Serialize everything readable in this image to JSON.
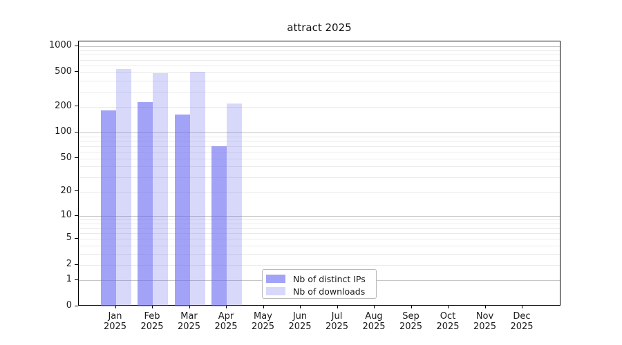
{
  "chart_data": {
    "type": "bar",
    "title": "attract 2025",
    "scale": "log1p",
    "ylabel": "",
    "xlabel": "",
    "ylim": [
      0,
      1140
    ],
    "y_ticks": [
      0,
      1,
      2,
      5,
      10,
      20,
      50,
      100,
      200,
      500,
      1000
    ],
    "gridlines": {
      "major": [
        1,
        10,
        100,
        1000
      ],
      "minor": [
        2,
        3,
        4,
        5,
        6,
        7,
        8,
        9,
        20,
        30,
        40,
        50,
        60,
        70,
        80,
        90,
        200,
        300,
        400,
        500,
        600,
        700,
        800,
        900
      ]
    },
    "categories": [
      "Jan",
      "Feb",
      "Mar",
      "Apr",
      "May",
      "Jun",
      "Jul",
      "Aug",
      "Sep",
      "Oct",
      "Nov",
      "Dec"
    ],
    "year_label": "2025",
    "series": [
      {
        "name": "Nb of distinct IPs",
        "color": "rgba(100,100,240,0.60)",
        "values": [
          180,
          225,
          162,
          70,
          0,
          0,
          0,
          0,
          0,
          0,
          0,
          0
        ]
      },
      {
        "name": "Nb of downloads",
        "color": "rgba(100,100,240,0.25)",
        "values": [
          545,
          490,
          505,
          220,
          0,
          0,
          0,
          0,
          0,
          0,
          0,
          0
        ]
      }
    ],
    "legend": {
      "position": "bottom-center-inside",
      "items": [
        "Nb of distinct IPs",
        "Nb of downloads"
      ]
    },
    "colors": {
      "major_grid": "#c6c6c6",
      "minor_grid": "#eaeaea",
      "axis": "#000000",
      "text": "#1a1a1a",
      "background": "#ffffff"
    }
  }
}
